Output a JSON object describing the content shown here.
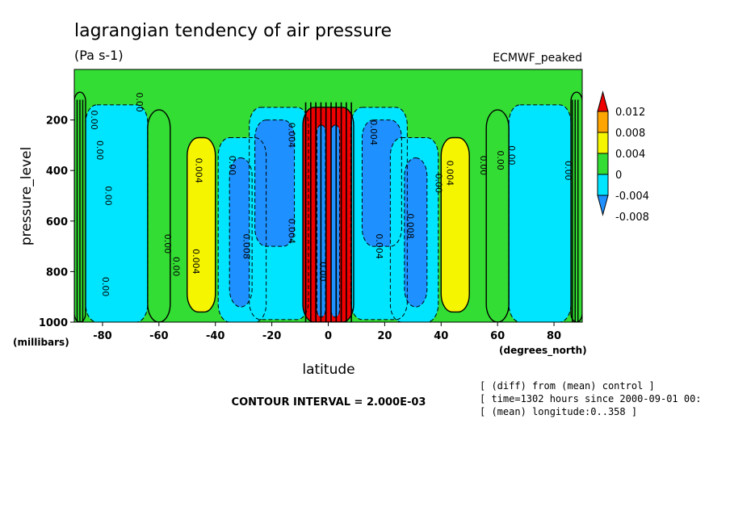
{
  "chart_data": {
    "type": "heatmap",
    "title": "lagrangian tendency of air pressure",
    "subtitle": "(Pa s-1)",
    "dataset_label": "ECMWF_peaked",
    "xlabel": "latitude",
    "x_unit_label": "(degrees_north)",
    "ylabel": "pressure_level",
    "y_unit_label": "(millibars)",
    "xlim": [
      -90,
      90
    ],
    "ylim": [
      1000,
      0
    ],
    "x_ticks": [
      -80,
      -60,
      -40,
      -20,
      0,
      20,
      40,
      60,
      80
    ],
    "x_tick_labels": [
      "-80",
      "-60",
      "-40",
      "-20",
      "0",
      "20",
      "40",
      "60",
      "80"
    ],
    "y_ticks": [
      200,
      400,
      600,
      800,
      1000
    ],
    "y_tick_labels": [
      "200",
      "400",
      "600",
      "800",
      "1000"
    ],
    "contour_interval_text": "CONTOUR INTERVAL = 2.000E-03",
    "notes": [
      "[ (diff) from (mean) control ]",
      "[ time=1302 hours since 2000-09-01 00:",
      "[ (mean) longitude:0..358 ]"
    ],
    "colorbar": {
      "levels": [
        0.012,
        0.008,
        0.004,
        0,
        -0.004,
        -0.008
      ],
      "level_labels": [
        "0.012",
        "0.008",
        "0.004",
        "0",
        "-0.004",
        "-0.008"
      ],
      "colors": [
        "#ee0000",
        "#ffa500",
        "#f5f500",
        "#33dd33",
        "#00e5ff",
        "#1e90ff"
      ]
    },
    "bands": [
      {
        "lat_from": -90,
        "lat_to": -86,
        "p_top": 90,
        "p_bottom": 1000,
        "value": "0"
      },
      {
        "lat_from": -86,
        "lat_to": -64,
        "p_top": 140,
        "p_bottom": 1000,
        "value": "-0.004"
      },
      {
        "lat_from": -64,
        "lat_to": -56,
        "p_top": 160,
        "p_bottom": 1000,
        "value": "0"
      },
      {
        "lat_from": -50,
        "lat_to": -40,
        "p_top": 270,
        "p_bottom": 960,
        "value": "0.004"
      },
      {
        "lat_from": -39,
        "lat_to": -22,
        "p_top": 270,
        "p_bottom": 1000,
        "value": "-0.004"
      },
      {
        "lat_from": -35,
        "lat_to": -27,
        "p_top": 350,
        "p_bottom": 940,
        "value": "-0.008"
      },
      {
        "lat_from": -28,
        "lat_to": -7,
        "p_top": 150,
        "p_bottom": 990,
        "value": "-0.004"
      },
      {
        "lat_from": -26,
        "lat_to": -12,
        "p_top": 200,
        "p_bottom": 700,
        "value": "-0.008"
      },
      {
        "lat_from": -9,
        "lat_to": 9,
        "p_top": 150,
        "p_bottom": 1000,
        "value": "0.012"
      },
      {
        "lat_from": -4,
        "lat_to": -1,
        "p_top": 220,
        "p_bottom": 980,
        "value": "-0.008"
      },
      {
        "lat_from": 1,
        "lat_to": 4,
        "p_top": 220,
        "p_bottom": 980,
        "value": "-0.008"
      },
      {
        "lat_from": 8,
        "lat_to": 28,
        "p_top": 150,
        "p_bottom": 990,
        "value": "-0.004"
      },
      {
        "lat_from": 12,
        "lat_to": 26,
        "p_top": 200,
        "p_bottom": 700,
        "value": "-0.008"
      },
      {
        "lat_from": 22,
        "lat_to": 39,
        "p_top": 270,
        "p_bottom": 1000,
        "value": "-0.004"
      },
      {
        "lat_from": 27,
        "lat_to": 35,
        "p_top": 350,
        "p_bottom": 940,
        "value": "-0.008"
      },
      {
        "lat_from": 40,
        "lat_to": 50,
        "p_top": 270,
        "p_bottom": 960,
        "value": "0.004"
      },
      {
        "lat_from": 56,
        "lat_to": 64,
        "p_top": 160,
        "p_bottom": 1000,
        "value": "0"
      },
      {
        "lat_from": 64,
        "lat_to": 86,
        "p_top": 140,
        "p_bottom": 1000,
        "value": "-0.004"
      },
      {
        "lat_from": 86,
        "lat_to": 90,
        "p_top": 90,
        "p_bottom": 1000,
        "value": "0"
      }
    ],
    "contour_labels": [
      {
        "lat": -84,
        "p": 200,
        "text": "0.00"
      },
      {
        "lat": -82,
        "p": 320,
        "text": "0.00"
      },
      {
        "lat": -79,
        "p": 500,
        "text": "0.00"
      },
      {
        "lat": -80,
        "p": 860,
        "text": "0.00"
      },
      {
        "lat": -68,
        "p": 130,
        "text": "0.00"
      },
      {
        "lat": -58,
        "p": 690,
        "text": "0.00"
      },
      {
        "lat": -55,
        "p": 780,
        "text": "0.00"
      },
      {
        "lat": -47,
        "p": 400,
        "text": "0.004"
      },
      {
        "lat": -48,
        "p": 760,
        "text": "0.004"
      },
      {
        "lat": -35,
        "p": 380,
        "text": "0.00"
      },
      {
        "lat": -30,
        "p": 700,
        "text": "0.008"
      },
      {
        "lat": -14,
        "p": 260,
        "text": "0.004"
      },
      {
        "lat": -14,
        "p": 640,
        "text": "0.004"
      },
      {
        "lat": -3,
        "p": 800,
        "text": "0.00"
      },
      {
        "lat": 15,
        "p": 250,
        "text": "0.004"
      },
      {
        "lat": 17,
        "p": 700,
        "text": "0.004"
      },
      {
        "lat": 28,
        "p": 620,
        "text": "0.008"
      },
      {
        "lat": 38,
        "p": 450,
        "text": "0.00"
      },
      {
        "lat": 42,
        "p": 410,
        "text": "0.004"
      },
      {
        "lat": 54,
        "p": 380,
        "text": "0.00"
      },
      {
        "lat": 60,
        "p": 360,
        "text": "0.00"
      },
      {
        "lat": 64,
        "p": 340,
        "text": "0.00"
      },
      {
        "lat": 84,
        "p": 400,
        "text": "0.00"
      }
    ]
  }
}
